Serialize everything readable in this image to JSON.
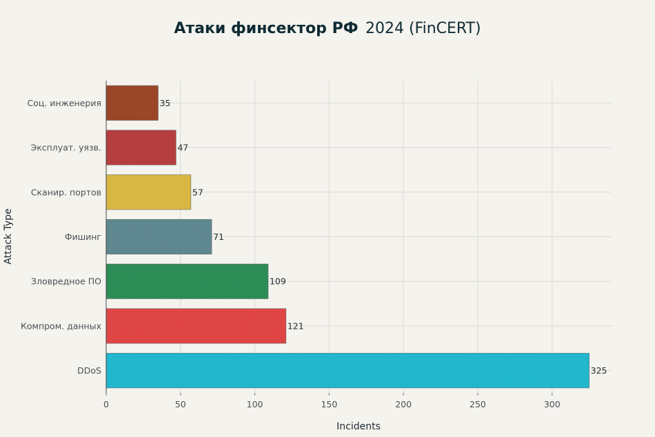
{
  "chart_data": {
    "type": "bar",
    "orientation": "horizontal",
    "title": "Атаки финсектор РФ",
    "title_suffix": "2024 (FinCERT)",
    "xlabel": "Incidents",
    "ylabel": "Attack Type",
    "xlim": [
      0,
      340
    ],
    "xticks": [
      0,
      50,
      100,
      150,
      200,
      250,
      300
    ],
    "grid": true,
    "categories": [
      "Соц. инженерия",
      "Эксплуат. уязв.",
      "Сканир. портов",
      "Фишинг",
      "Зловредное ПО",
      "Компром. данных",
      "DDoS"
    ],
    "values": [
      35,
      47,
      57,
      71,
      109,
      121,
      325
    ],
    "colors": [
      "#9a4526",
      "#b53c3c",
      "#d8b840",
      "#5e8790",
      "#2b8c55",
      "#e04444",
      "#1fb7cd"
    ]
  }
}
